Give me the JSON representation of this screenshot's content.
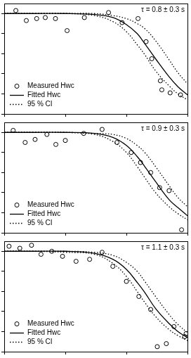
{
  "chart_data": [
    {
      "type": "scatter",
      "annotation": "τ = 0.8 ± 0.3 s",
      "legend": "lower left",
      "log": "x",
      "grid": false,
      "tick_labels": false,
      "xlim": [
        0.001,
        1
      ],
      "xticks": [
        0.001,
        0.01,
        0.1,
        1
      ],
      "ylim": [
        0,
        1.1
      ],
      "yticks": [
        0,
        0.2,
        0.4,
        0.6,
        0.8,
        1
      ],
      "series": [
        {
          "name": "Measured Hwc",
          "type": "scatter",
          "marker": "circle",
          "color": "#000000",
          "x": [
            0.00155,
            0.0023,
            0.0034,
            0.0047,
            0.0069,
            0.0107,
            0.0205,
            0.051,
            0.085,
            0.155,
            0.21,
            0.26,
            0.36,
            0.38,
            0.52,
            0.77
          ],
          "values": [
            1.03,
            0.93,
            0.95,
            0.96,
            0.95,
            0.83,
            0.96,
            1.01,
            0.91,
            0.95,
            0.72,
            0.55,
            0.33,
            0.24,
            0.21,
            0.19
          ]
        },
        {
          "name": "Fitted Hwc",
          "type": "line",
          "line_style": "solid",
          "color": "#000000",
          "x": [
            0.001,
            0.003,
            0.01,
            0.03,
            0.06,
            0.1,
            0.15,
            0.2,
            0.3,
            0.5,
            0.7,
            1
          ],
          "values": [
            1.0,
            1.0,
            1.0,
            0.99,
            0.96,
            0.89,
            0.8,
            0.7,
            0.55,
            0.37,
            0.27,
            0.19
          ]
        },
        {
          "name": "95 % CI",
          "type": "line",
          "line_style": "dotted",
          "color": "#000000",
          "x": [
            0.001,
            0.003,
            0.01,
            0.03,
            0.06,
            0.1,
            0.15,
            0.2,
            0.3,
            0.5,
            0.7,
            1
          ],
          "values": [
            1.0,
            1.0,
            1.0,
            1.0,
            0.98,
            0.95,
            0.9,
            0.85,
            0.73,
            0.54,
            0.41,
            0.3
          ]
        },
        {
          "name": "95 % CI",
          "type": "line",
          "line_style": "dotted",
          "color": "#000000",
          "x": [
            0.001,
            0.003,
            0.01,
            0.03,
            0.06,
            0.1,
            0.15,
            0.2,
            0.3,
            0.5,
            0.7,
            1
          ],
          "values": [
            1.0,
            1.0,
            1.0,
            0.98,
            0.92,
            0.82,
            0.69,
            0.59,
            0.43,
            0.28,
            0.2,
            0.14
          ]
        }
      ]
    },
    {
      "type": "scatter",
      "annotation": "τ = 0.9 ± 0.3 s",
      "legend": "lower left",
      "log": "x",
      "grid": false,
      "tick_labels": false,
      "xlim": [
        0.001,
        1
      ],
      "xticks": [
        0.001,
        0.01,
        0.1,
        1
      ],
      "ylim": [
        0,
        1.1
      ],
      "yticks": [
        0,
        0.2,
        0.4,
        0.6,
        0.8,
        1
      ],
      "series": [
        {
          "name": "Measured Hwc",
          "type": "scatter",
          "marker": "circle",
          "color": "#000000",
          "x": [
            0.0014,
            0.0022,
            0.0032,
            0.005,
            0.007,
            0.01,
            0.02,
            0.04,
            0.07,
            0.12,
            0.17,
            0.25,
            0.35,
            0.5,
            0.8
          ],
          "values": [
            1.02,
            0.9,
            0.93,
            0.98,
            0.88,
            0.92,
            0.99,
            1.03,
            0.9,
            0.8,
            0.7,
            0.6,
            0.45,
            0.42,
            0.03
          ]
        },
        {
          "name": "Fitted Hwc",
          "type": "line",
          "line_style": "solid",
          "color": "#000000",
          "x": [
            0.001,
            0.003,
            0.01,
            0.03,
            0.06,
            0.1,
            0.15,
            0.2,
            0.3,
            0.5,
            0.7,
            1
          ],
          "values": [
            1.0,
            1.0,
            1.0,
            0.99,
            0.95,
            0.87,
            0.76,
            0.66,
            0.51,
            0.33,
            0.25,
            0.17
          ]
        },
        {
          "name": "95 % CI",
          "type": "line",
          "line_style": "dotted",
          "color": "#000000",
          "x": [
            0.001,
            0.003,
            0.01,
            0.03,
            0.06,
            0.1,
            0.15,
            0.2,
            0.3,
            0.5,
            0.7,
            1
          ],
          "values": [
            1.0,
            1.0,
            1.0,
            0.99,
            0.98,
            0.94,
            0.87,
            0.8,
            0.66,
            0.47,
            0.35,
            0.26
          ]
        },
        {
          "name": "95 % CI",
          "type": "line",
          "line_style": "dotted",
          "color": "#000000",
          "x": [
            0.001,
            0.003,
            0.01,
            0.03,
            0.06,
            0.1,
            0.15,
            0.2,
            0.3,
            0.5,
            0.7,
            1
          ],
          "values": [
            1.0,
            1.0,
            1.0,
            0.98,
            0.91,
            0.8,
            0.66,
            0.55,
            0.4,
            0.26,
            0.19,
            0.13
          ]
        }
      ]
    },
    {
      "type": "scatter",
      "annotation": "τ = 1.1 ± 0.3 s",
      "legend": "lower left",
      "log": "x",
      "grid": false,
      "tick_labels": false,
      "xlim": [
        0.001,
        1
      ],
      "xticks": [
        0.001,
        0.01,
        0.1,
        1
      ],
      "ylim": [
        0,
        1.1
      ],
      "yticks": [
        0,
        0.2,
        0.4,
        0.6,
        0.8,
        1
      ],
      "series": [
        {
          "name": "Measured Hwc",
          "type": "scatter",
          "marker": "circle",
          "color": "#000000",
          "x": [
            0.0012,
            0.0018,
            0.0028,
            0.004,
            0.006,
            0.009,
            0.015,
            0.025,
            0.04,
            0.06,
            0.1,
            0.16,
            0.25,
            0.32,
            0.45,
            0.6,
            0.9,
            0.95
          ],
          "values": [
            1.05,
            1.03,
            1.06,
            0.97,
            1.0,
            0.95,
            0.9,
            0.92,
            0.99,
            0.85,
            0.7,
            0.55,
            0.42,
            0.05,
            0.08,
            0.25,
            0.15,
            0.18
          ]
        },
        {
          "name": "Fitted Hwc",
          "type": "line",
          "line_style": "solid",
          "color": "#000000",
          "x": [
            0.001,
            0.003,
            0.01,
            0.03,
            0.06,
            0.1,
            0.15,
            0.2,
            0.3,
            0.5,
            0.7,
            1
          ],
          "values": [
            1.0,
            1.0,
            1.0,
            0.98,
            0.92,
            0.82,
            0.69,
            0.59,
            0.43,
            0.28,
            0.2,
            0.14
          ]
        },
        {
          "name": "95 % CI",
          "type": "line",
          "line_style": "dotted",
          "color": "#000000",
          "x": [
            0.001,
            0.003,
            0.01,
            0.03,
            0.06,
            0.1,
            0.15,
            0.2,
            0.3,
            0.5,
            0.7,
            1
          ],
          "values": [
            1.0,
            1.0,
            1.0,
            0.99,
            0.96,
            0.89,
            0.8,
            0.7,
            0.55,
            0.37,
            0.27,
            0.19
          ]
        },
        {
          "name": "95 % CI",
          "type": "line",
          "line_style": "dotted",
          "color": "#000000",
          "x": [
            0.001,
            0.003,
            0.01,
            0.03,
            0.06,
            0.1,
            0.15,
            0.2,
            0.3,
            0.5,
            0.7,
            1
          ],
          "values": [
            1.0,
            1.0,
            0.99,
            0.97,
            0.88,
            0.75,
            0.6,
            0.49,
            0.35,
            0.22,
            0.16,
            0.11
          ]
        }
      ]
    }
  ]
}
